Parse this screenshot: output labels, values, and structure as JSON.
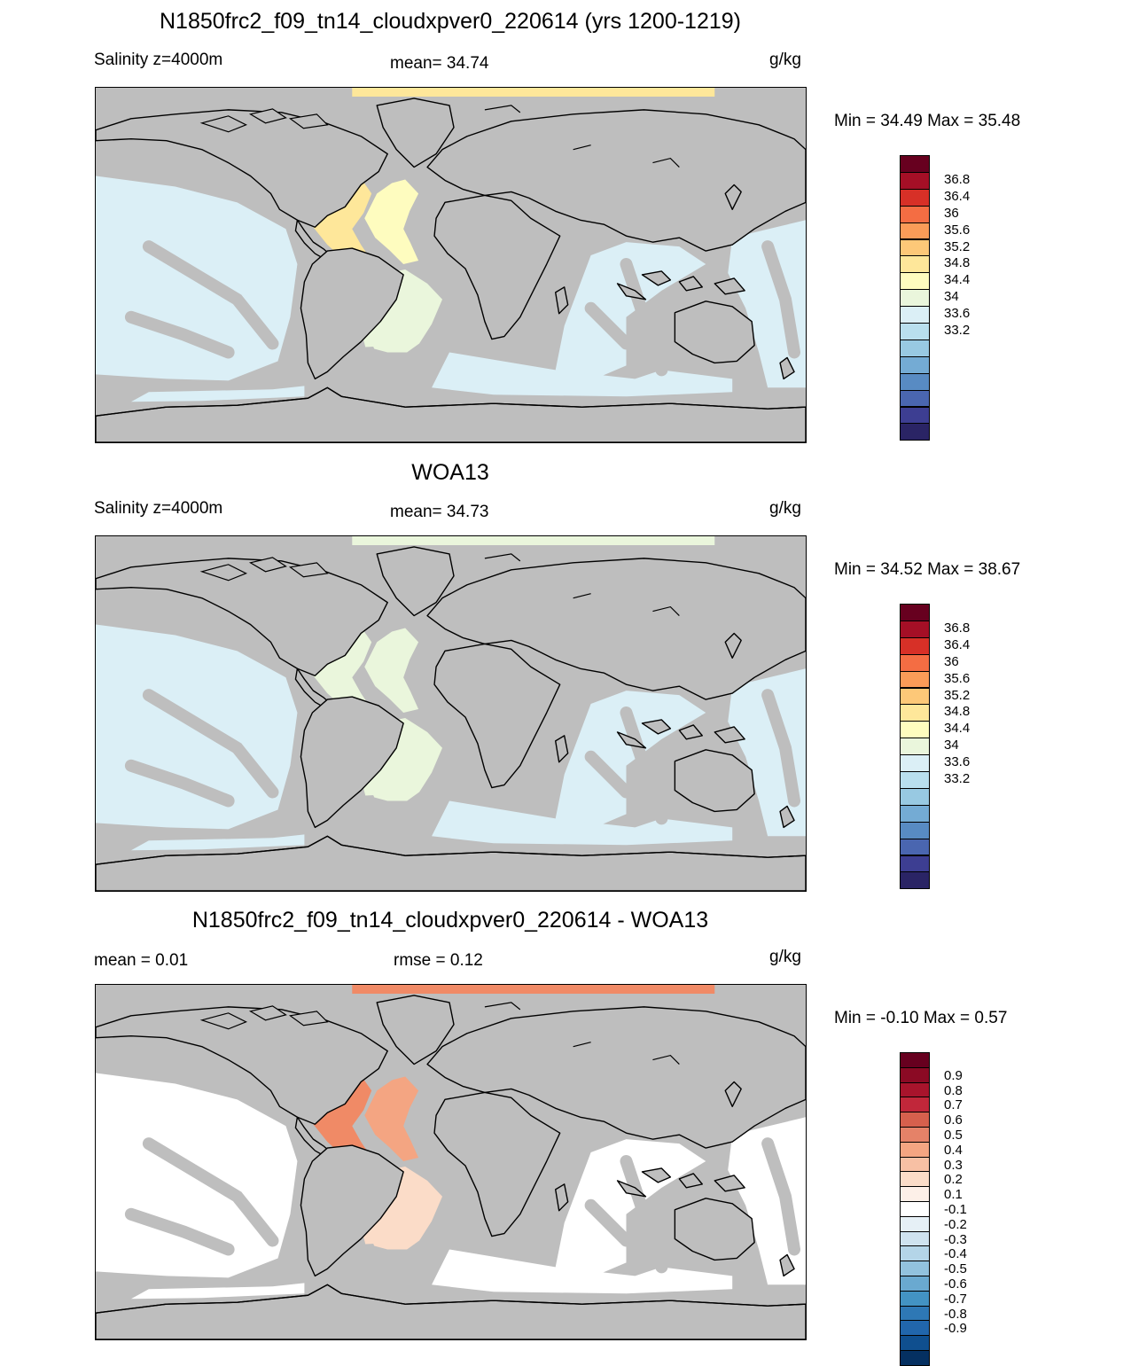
{
  "panels": [
    {
      "title": "N1850frc2_f09_tn14_cloudxpver0_220614 (yrs 1200-1219)",
      "left_label": "Salinity z=4000m",
      "center_label": "mean=  34.74",
      "units": "g/kg",
      "minmax": "Min =  34.49 Max =  35.48",
      "colorbar": {
        "colors": [
          "#67001f",
          "#a50f26",
          "#d73027",
          "#f46d43",
          "#fa9c58",
          "#fdc878",
          "#fee79a",
          "#fefcbf",
          "#eaf6dc",
          "#dbeff6",
          "#b9dfee",
          "#98c9e2",
          "#74abd4",
          "#588bc3",
          "#4a66b0",
          "#3d3e92",
          "#2a2465"
        ],
        "labels": [
          "36.8",
          "36.4",
          "36",
          "35.6",
          "35.2",
          "34.8",
          "34.4",
          "34",
          "33.6",
          "33.2"
        ]
      },
      "patches": [
        "#fee79a",
        "#fefcbf",
        "#eaf6dc",
        "#dbeff6"
      ]
    },
    {
      "title": "WOA13",
      "left_label": "Salinity z=4000m",
      "center_label": "mean=  34.73",
      "units": "g/kg",
      "minmax": "Min =  34.52 Max =  38.67",
      "colorbar": {
        "colors": [
          "#67001f",
          "#a50f26",
          "#d73027",
          "#f46d43",
          "#fa9c58",
          "#fdc878",
          "#fee79a",
          "#fefcbf",
          "#eaf6dc",
          "#dbeff6",
          "#b9dfee",
          "#98c9e2",
          "#74abd4",
          "#588bc3",
          "#4a66b0",
          "#3d3e92",
          "#2a2465"
        ],
        "labels": [
          "36.8",
          "36.4",
          "36",
          "35.6",
          "35.2",
          "34.8",
          "34.4",
          "34",
          "33.6",
          "33.2"
        ]
      },
      "patches": [
        "#eaf6dc",
        "#eaf6dc",
        "#eaf6dc",
        "#dbeff6"
      ]
    },
    {
      "title": "N1850frc2_f09_tn14_cloudxpver0_220614 - WOA13",
      "left_label": "mean =   0.01",
      "center_label": "rmse =   0.12",
      "units": "g/kg",
      "minmax": "Min =  -0.10 Max =   0.57",
      "colorbar": {
        "colors": [
          "#67001f",
          "#8b0a24",
          "#a8142c",
          "#c1273a",
          "#d6604d",
          "#e58268",
          "#f4a582",
          "#f7c0a4",
          "#fbdcc8",
          "#fdf0e8",
          "#ffffff",
          "#e6f0f6",
          "#cfe3ef",
          "#b4d5e8",
          "#92c2de",
          "#6aa9d0",
          "#4393c3",
          "#2e78b5",
          "#2166ac",
          "#0f4f8f",
          "#053061"
        ],
        "labels": [
          "0.9",
          "0.8",
          "0.7",
          "0.6",
          "0.5",
          "0.4",
          "0.3",
          "0.2",
          "0.1",
          "-0.1",
          "-0.2",
          "-0.3",
          "-0.4",
          "-0.5",
          "-0.6",
          "-0.7",
          "-0.8",
          "-0.9"
        ]
      },
      "patches": [
        "#f08a66",
        "#f4a582",
        "#fbdcc8",
        "#ffffff"
      ]
    }
  ]
}
